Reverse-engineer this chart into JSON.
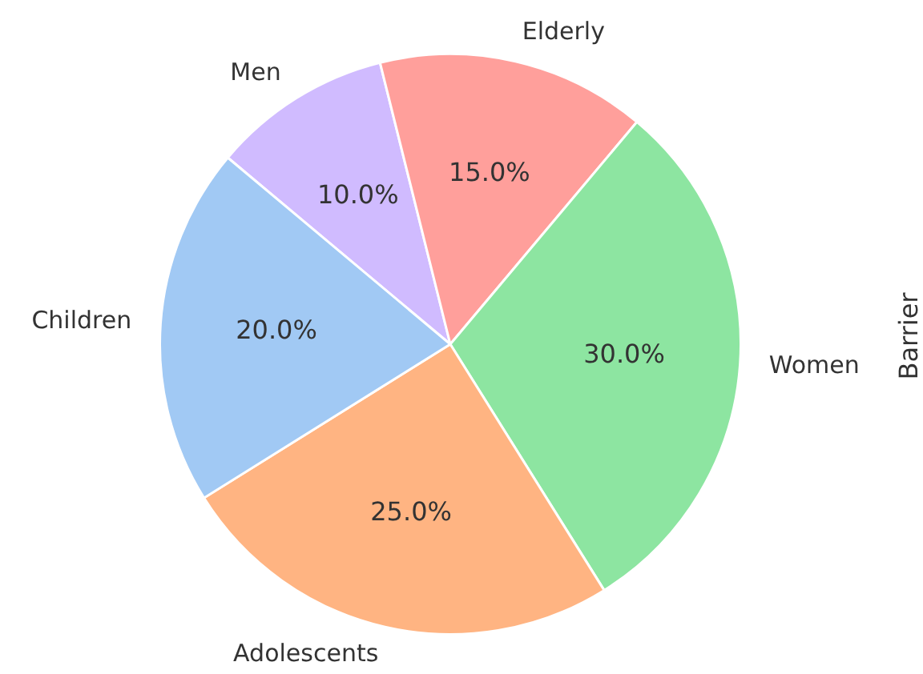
{
  "chart_data": {
    "type": "pie",
    "ylabel": "Barrier",
    "categories": [
      "Men",
      "Elderly",
      "Women",
      "Adolescents",
      "Children"
    ],
    "values": [
      10,
      15,
      30,
      25,
      20
    ],
    "colors": [
      "#d0bbff",
      "#ff9f9b",
      "#8de5a1",
      "#ffb482",
      "#a1c9f4"
    ],
    "value_labels": [
      "10.0%",
      "15.0%",
      "30.0%",
      "25.0%",
      "20.0%"
    ],
    "legend": false
  }
}
